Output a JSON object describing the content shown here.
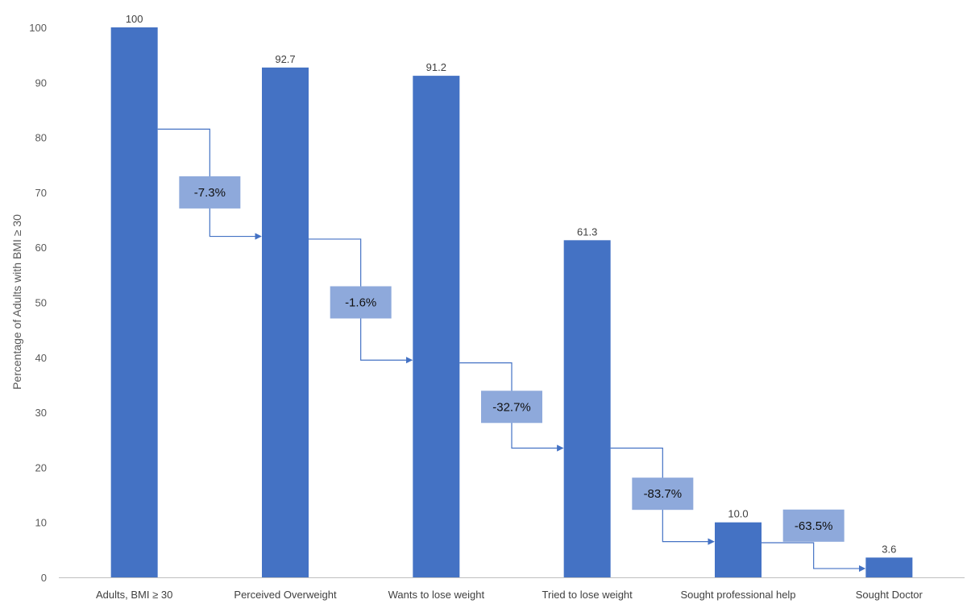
{
  "chart_data": {
    "type": "bar",
    "title": "",
    "xlabel": "",
    "ylabel": "Percentage of Adults with BMI ≥ 30",
    "ylim": [
      0,
      100
    ],
    "yticks": [
      0,
      10,
      20,
      30,
      40,
      50,
      60,
      70,
      80,
      90,
      100
    ],
    "grid": false,
    "categories": [
      "Adults, BMI ≥ 30",
      "Perceived Overweight",
      "Wants to lose weight",
      "Tried to lose weight",
      "Sought professional help",
      "Sought Doctor"
    ],
    "values": [
      100,
      92.7,
      91.2,
      61.3,
      10.0,
      3.6
    ],
    "value_labels": [
      "100",
      "92.7",
      "91.2",
      "61.3",
      "10.0",
      "3.6"
    ],
    "changes": [
      {
        "label": "-7.3%",
        "box_center_y": 70,
        "connector_start_y": 81.5,
        "connector_end_y": 62
      },
      {
        "label": "-1.6%",
        "box_center_y": 50,
        "connector_start_y": 61.5,
        "connector_end_y": 39.5
      },
      {
        "label": "-32.7%",
        "box_center_y": 31,
        "connector_start_y": 39,
        "connector_end_y": 23.5
      },
      {
        "label": "-83.7%",
        "box_center_y": 15.2,
        "connector_start_y": 23.5,
        "connector_end_y": 6.5
      },
      {
        "label": "-63.5%",
        "box_center_y": 9.4,
        "connector_start_y": 6.3,
        "connector_end_y": 1.6
      }
    ],
    "colors": {
      "bar": "#4472C4",
      "change_box": "#8EA9DB",
      "connector": "#4472C4",
      "axis": "#BFBFBF"
    }
  }
}
